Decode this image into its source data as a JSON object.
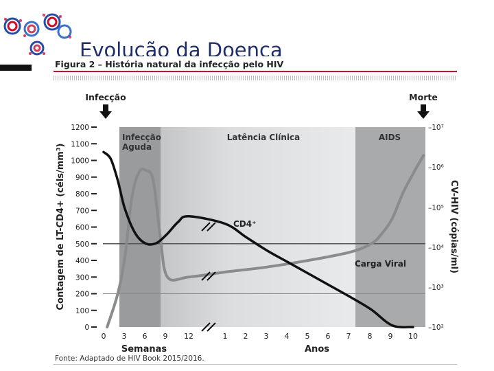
{
  "slide": {
    "title": "Evolução da Doença",
    "figure_caption": "Figura 2 – História natural da infecção pelo HIV",
    "source": "Fonte: Adaptado de HIV Book 2015/2016."
  },
  "chart_data": {
    "type": "line",
    "ylabel": "Contagem de LT-CD4+ (céls/mm³)",
    "y2label": "CV-HIV (cópias/ml)",
    "ylim": [
      0,
      1200
    ],
    "y_ticks": [
      "0",
      "100",
      "200",
      "300",
      "400",
      "500",
      "600",
      "700",
      "800",
      "900",
      "1000",
      "1100",
      "1200"
    ],
    "y2_log": true,
    "y2_ticks": [
      "–10²",
      "–10³",
      "–10⁴",
      "–10⁵",
      "–10⁶",
      "–10⁷"
    ],
    "x_ticks": [
      "0",
      "3",
      "6",
      "9",
      "12",
      "1",
      "2",
      "3",
      "4",
      "5",
      "6",
      "7",
      "8",
      "9",
      "10"
    ],
    "x_group_labels": [
      "Semanas",
      "Anos"
    ],
    "phases": [
      {
        "label_lines": [
          "Infecção",
          "Aguda"
        ],
        "x_from": 3,
        "x_to": 9,
        "color": "#9a9b9c"
      },
      {
        "label_lines": [
          "Latência Clínica"
        ],
        "x_from": 9,
        "x_to": 7.3,
        "color": "#dedfe0"
      },
      {
        "label_lines": [
          "AIDS"
        ],
        "x_from": 7.3,
        "x_to": 9.6,
        "color": "#a9aaab"
      }
    ],
    "events": [
      {
        "label": "Infecção",
        "at": "0 semanas"
      },
      {
        "label": "Morte",
        "at": "10 anos"
      }
    ],
    "reference_lines": [
      500,
      200
    ],
    "series": [
      {
        "name": "CD4⁺",
        "superscript": "+",
        "color": "#111111",
        "points": [
          [
            "0 sem",
            1050
          ],
          [
            "1 sem",
            1010
          ],
          [
            "2 sem",
            880
          ],
          [
            "3 sem",
            710
          ],
          [
            "4.5 sem",
            560
          ],
          [
            "6 sem",
            500
          ],
          [
            "7.5 sem",
            505
          ],
          [
            "9 sem",
            560
          ],
          [
            "10.5 sem",
            630
          ],
          [
            "12 sem",
            665
          ],
          [
            "1 ano",
            620
          ],
          [
            "2 anos",
            540
          ],
          [
            "3 anos",
            460
          ],
          [
            "4 anos",
            390
          ],
          [
            "5 anos",
            320
          ],
          [
            "6 anos",
            250
          ],
          [
            "7 anos",
            180
          ],
          [
            "8 anos",
            105
          ],
          [
            "9 anos",
            10
          ],
          [
            "10 anos",
            0
          ]
        ]
      },
      {
        "name": "Carga Viral",
        "color": "#8a8b8c",
        "points": [
          [
            "0.5 sem",
            0
          ],
          [
            "2 sem",
            200
          ],
          [
            "3 sem",
            420
          ],
          [
            "4 sem",
            780
          ],
          [
            "5 sem",
            930
          ],
          [
            "6 sem",
            940
          ],
          [
            "7 sem",
            880
          ],
          [
            "8 sem",
            540
          ],
          [
            "9 sem",
            300
          ],
          [
            "12 sem",
            300
          ],
          [
            "1 ano",
            330
          ],
          [
            "3 anos",
            360
          ],
          [
            "5 anos",
            400
          ],
          [
            "7 anos",
            450
          ],
          [
            "8 anos",
            500
          ],
          [
            "8.5 anos",
            560
          ],
          [
            "9 anos",
            650
          ],
          [
            "9.5 anos",
            800
          ],
          [
            "10 anos",
            920
          ],
          [
            "10.5 anos",
            1030
          ]
        ]
      }
    ]
  }
}
